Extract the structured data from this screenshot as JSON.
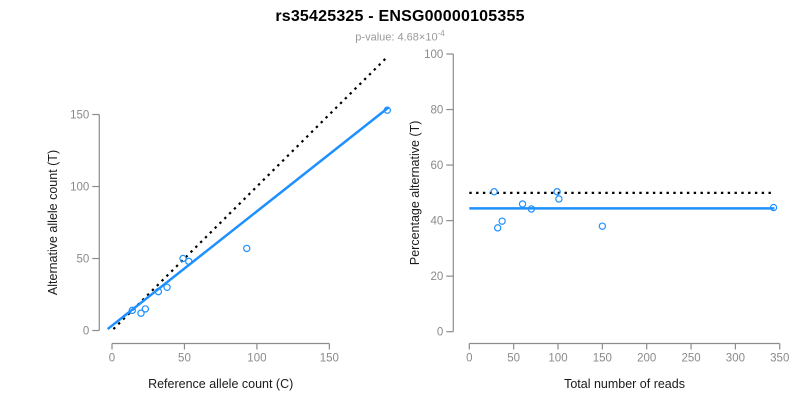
{
  "header": {
    "title": "rs35425325 - ENSG00000105355",
    "pvalue_prefix": "p-value: 4.68×10",
    "pvalue_exponent": "-4"
  },
  "colors": {
    "accent_blue": "#1E90FF",
    "line_black": "#000000",
    "axis_gray": "#8C8C8C",
    "tick_label_gray": "#8A8A8A",
    "axis_title_black": "#1A1A1A",
    "subtitle_gray": "#999999",
    "background": "#FFFFFF"
  },
  "chart_data": [
    {
      "type": "scatter",
      "name": "allele-counts-scatter",
      "xlabel": "Reference allele count (C)",
      "ylabel": "Alternative allele count (T)",
      "xticks": [
        0,
        50,
        100,
        150
      ],
      "yticks": [
        0,
        50,
        100,
        150
      ],
      "xlim": [
        0,
        195
      ],
      "ylim": [
        0,
        195
      ],
      "grid": false,
      "marker": "open-circle",
      "marker_color": "#1E90FF",
      "points": [
        [
          14,
          14
        ],
        [
          20,
          12
        ],
        [
          23,
          15
        ],
        [
          32,
          27
        ],
        [
          38,
          30
        ],
        [
          49,
          50
        ],
        [
          53,
          48
        ],
        [
          93,
          57
        ],
        [
          190,
          153
        ]
      ],
      "lines": [
        {
          "name": "identity-line",
          "style": "dotted",
          "color": "#000000",
          "from": [
            1,
            1
          ],
          "to": [
            189,
            189
          ]
        },
        {
          "name": "regression-line",
          "style": "solid",
          "color": "#1E90FF",
          "from": [
            -3,
            1
          ],
          "to": [
            191,
            155
          ]
        }
      ]
    },
    {
      "type": "scatter",
      "name": "percentage-alternative-scatter",
      "xlabel": "Total number of reads",
      "ylabel": "Percentage alternative (T)",
      "xticks": [
        0,
        50,
        100,
        150,
        200,
        250,
        300,
        350
      ],
      "yticks": [
        0,
        20,
        40,
        60,
        80,
        100
      ],
      "xlim": [
        0,
        360
      ],
      "ylim": [
        0,
        100
      ],
      "grid": false,
      "marker": "open-circle",
      "marker_color": "#1E90FF",
      "points": [
        [
          28,
          50.4
        ],
        [
          32,
          37.4
        ],
        [
          37,
          39.8
        ],
        [
          60,
          46.0
        ],
        [
          70,
          44.2
        ],
        [
          99,
          50.4
        ],
        [
          101,
          47.8
        ],
        [
          150,
          38.0
        ],
        [
          343,
          44.7
        ]
      ],
      "lines": [
        {
          "name": "expected-50-line",
          "style": "dotted",
          "color": "#000000",
          "from": [
            0,
            50
          ],
          "to": [
            340,
            50
          ]
        },
        {
          "name": "mean-percentage-line",
          "style": "solid",
          "color": "#1E90FF",
          "from": [
            0,
            44.4
          ],
          "to": [
            344,
            44.4
          ]
        }
      ]
    }
  ]
}
